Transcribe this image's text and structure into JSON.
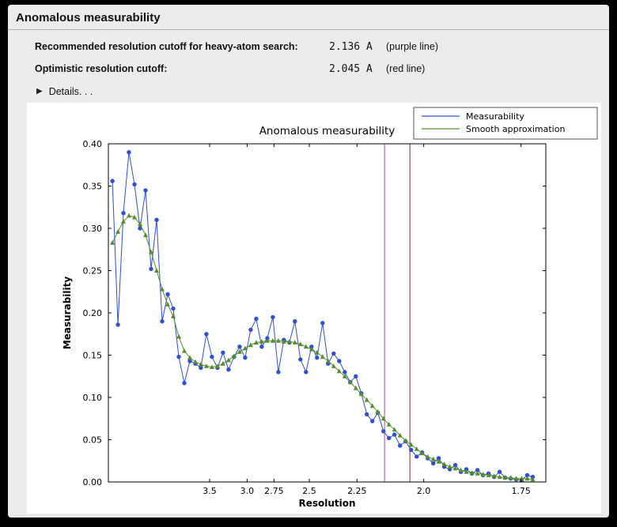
{
  "window": {
    "title": "Anomalous measurability"
  },
  "info": {
    "rows": [
      {
        "label": "Recommended resolution cutoff for heavy-atom search:",
        "value": "2.136 A",
        "note": "(purple line)"
      },
      {
        "label": "Optimistic resolution cutoff:",
        "value": "2.045 A",
        "note": "(red line)"
      }
    ],
    "details_icon": "▶",
    "details_label": "Details. . ."
  },
  "chart_data": {
    "type": "line",
    "title": "Anomalous measurability",
    "xlabel": "Resolution",
    "ylabel": "Measurability",
    "x_scale_note": "x axis is linear in 1/d^2; tick labels show resolution in Angstrom (reversed)",
    "xlim": [
      0.002,
      0.346
    ],
    "ylim": [
      0.0,
      0.4
    ],
    "xticks": [
      {
        "label": "3.5",
        "resolution": 3.5
      },
      {
        "label": "3.0",
        "resolution": 3.0
      },
      {
        "label": "2.75",
        "resolution": 2.75
      },
      {
        "label": "2.5",
        "resolution": 2.5
      },
      {
        "label": "2.25",
        "resolution": 2.25
      },
      {
        "label": "2.0",
        "resolution": 2.0
      },
      {
        "label": "1.75",
        "resolution": 1.75
      }
    ],
    "yticks": [
      0.0,
      0.05,
      0.1,
      0.15,
      0.2,
      0.25,
      0.3,
      0.35,
      0.4
    ],
    "x_start": 0.00515,
    "x_step": 0.00435,
    "series": [
      {
        "name": "Measurability",
        "color": "#2f4fcd",
        "marker": "circle",
        "values": [
          0.356,
          0.186,
          0.318,
          0.39,
          0.352,
          0.3,
          0.345,
          0.252,
          0.31,
          0.19,
          0.222,
          0.205,
          0.148,
          0.117,
          0.143,
          0.14,
          0.135,
          0.175,
          0.148,
          0.135,
          0.153,
          0.133,
          0.148,
          0.16,
          0.147,
          0.18,
          0.193,
          0.16,
          0.17,
          0.195,
          0.13,
          0.168,
          0.165,
          0.19,
          0.145,
          0.13,
          0.16,
          0.147,
          0.188,
          0.14,
          0.152,
          0.143,
          0.13,
          0.118,
          0.125,
          0.105,
          0.08,
          0.072,
          0.082,
          0.06,
          0.052,
          0.056,
          0.043,
          0.048,
          0.038,
          0.03,
          0.035,
          0.028,
          0.022,
          0.028,
          0.018,
          0.015,
          0.02,
          0.012,
          0.015,
          0.01,
          0.014,
          0.008,
          0.01,
          0.006,
          0.012,
          0.005,
          0.004,
          0.003,
          0.002,
          0.008,
          0.006
        ]
      },
      {
        "name": "Smooth approximation",
        "color": "#568c2e",
        "marker": "triangle",
        "values": [
          0.283,
          0.296,
          0.308,
          0.315,
          0.313,
          0.305,
          0.292,
          0.272,
          0.25,
          0.228,
          0.21,
          0.196,
          0.172,
          0.155,
          0.147,
          0.142,
          0.139,
          0.137,
          0.136,
          0.137,
          0.14,
          0.144,
          0.149,
          0.154,
          0.158,
          0.162,
          0.165,
          0.166,
          0.167,
          0.167,
          0.167,
          0.166,
          0.166,
          0.165,
          0.163,
          0.16,
          0.157,
          0.153,
          0.148,
          0.143,
          0.137,
          0.131,
          0.125,
          0.118,
          0.111,
          0.104,
          0.097,
          0.09,
          0.083,
          0.075,
          0.068,
          0.062,
          0.055,
          0.049,
          0.044,
          0.039,
          0.034,
          0.03,
          0.027,
          0.024,
          0.021,
          0.018,
          0.016,
          0.014,
          0.012,
          0.011,
          0.01,
          0.009,
          0.008,
          0.007,
          0.006,
          0.005,
          0.005,
          0.004,
          0.004,
          0.004,
          0.003
        ]
      }
    ],
    "vlines": [
      {
        "name": "purple-cutoff-line",
        "label": "purple line",
        "resolution": 2.136,
        "color": "#bb55bb"
      },
      {
        "name": "red-cutoff-line",
        "label": "red line",
        "resolution": 2.045,
        "color": "#a03939"
      }
    ],
    "legend": {
      "position": "top-right"
    }
  }
}
